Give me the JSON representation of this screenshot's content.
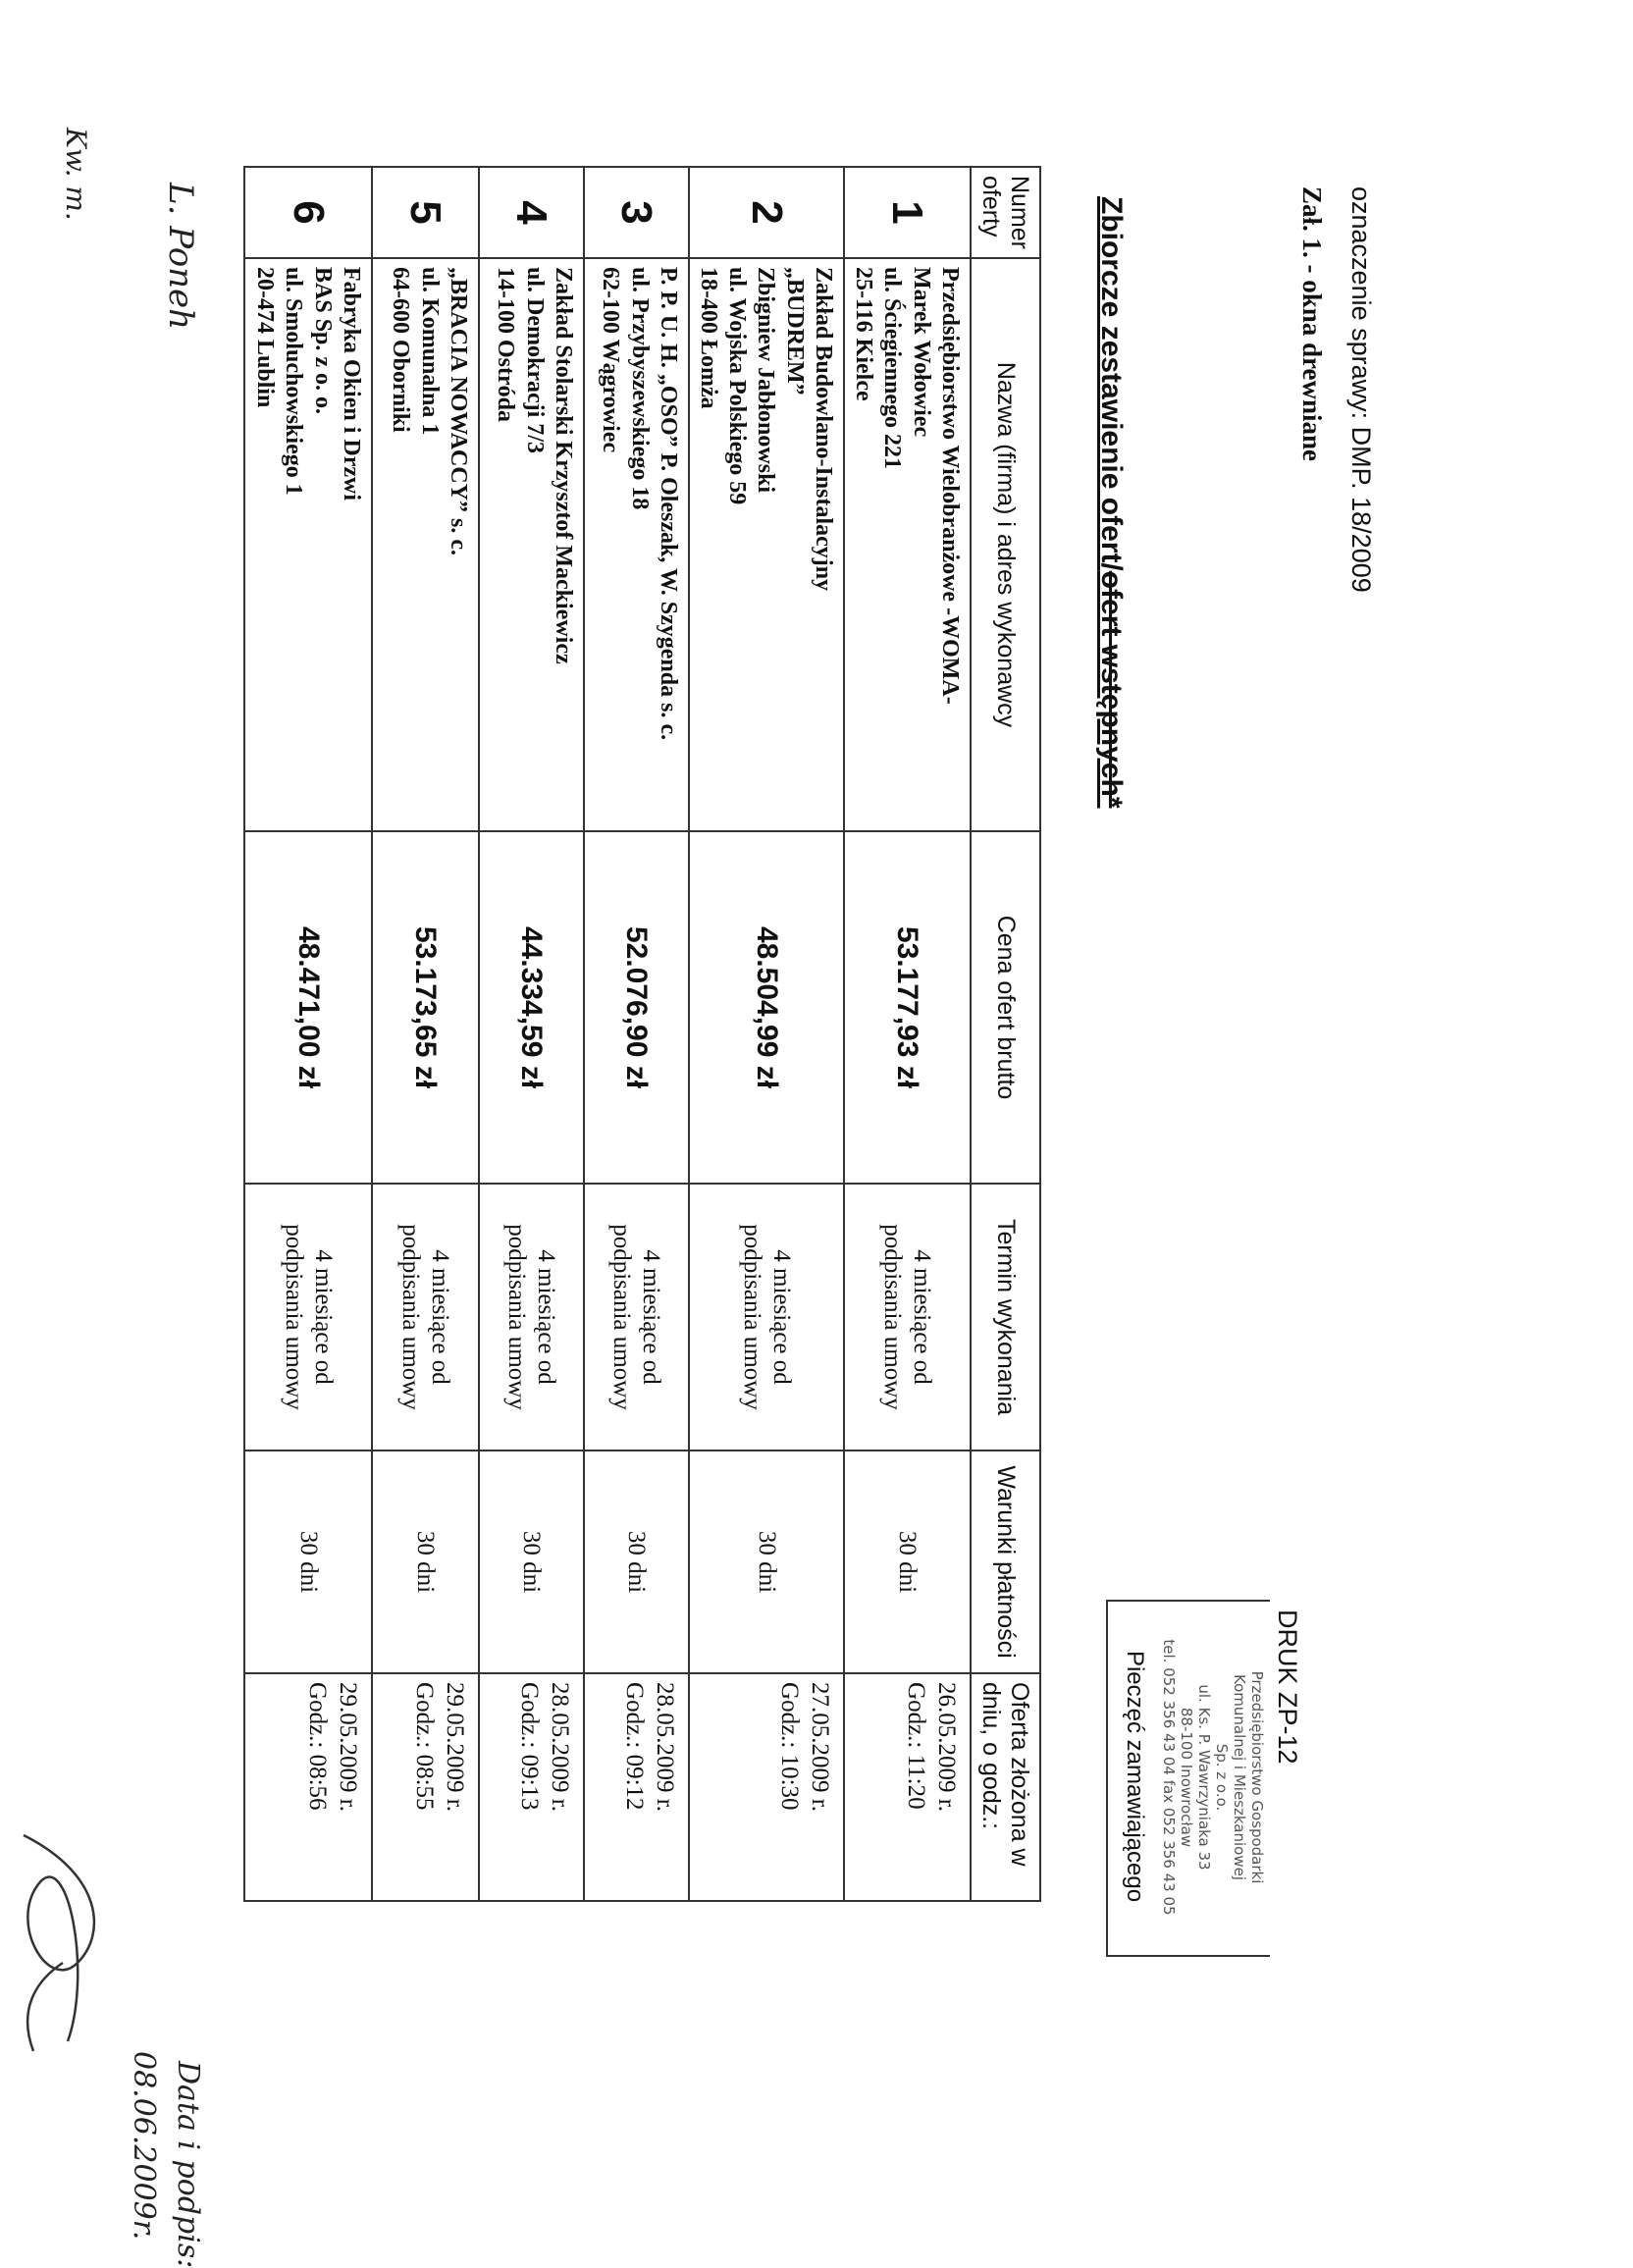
{
  "header": {
    "case": "oznaczenie sprawy: DMP. 18/2009",
    "attachment": "Zał. 1. - okna drewniane",
    "title_main": "Zbiorcze zestawienie ofert/",
    "title_struck": "ofert wstępnych*"
  },
  "table": {
    "columns": [
      "Numer oferty",
      "Nazwa (firma) i adres wykonawcy",
      "Cena ofert brutto",
      "Termin wykonania",
      "Warunki płatności",
      "Oferta złożona w dniu, o godz.:"
    ],
    "rows": [
      {
        "no": "1",
        "name": [
          "Przedsiębiorstwo Wielobranżowe -WOMA-",
          "Marek Wołowiec",
          "ul. Ściegiennego 221",
          "25-116 Kielce"
        ],
        "price": "53.177,93 zł",
        "term": [
          "4 miesiące od",
          "podpisania umowy"
        ],
        "pay": "30 dni",
        "date": "26.05.2009 r.",
        "time": "Godz.: 11:20"
      },
      {
        "no": "2",
        "name": [
          "Zakład Budowlano-Instalacyjny",
          "„BUDREM”",
          "Zbigniew Jabłonowski",
          "ul. Wojska Polskiego 59",
          "18-400 Łomża"
        ],
        "price": "48.504,99 zł",
        "term": [
          "4 miesiące od",
          "podpisania umowy"
        ],
        "pay": "30 dni",
        "date": "27.05.2009 r.",
        "time": "Godz.: 10:30"
      },
      {
        "no": "3",
        "name": [
          "P. P. U. H. „OSO” P. Oleszak, W. Szygenda s. c.",
          "ul. Przybyszewskiego 18",
          "62-100 Wągrowiec"
        ],
        "price": "52.076,90 zł",
        "term": [
          "4 miesiące od",
          "podpisania umowy"
        ],
        "pay": "30 dni",
        "date": "28.05.2009 r.",
        "time": "Godz.: 09:12"
      },
      {
        "no": "4",
        "name": [
          "Zakład Stolarski Krzysztof Mackiewicz",
          "ul. Demokracji 7/3",
          "14-100 Ostróda"
        ],
        "price": "44.334,59 zł",
        "term": [
          "4 miesiące od",
          "podpisania umowy"
        ],
        "pay": "30 dni",
        "date": "28.05.2009 r.",
        "time": "Godz.: 09:13"
      },
      {
        "no": "5",
        "name": [
          "„BRACIA NOWACCY” s. c.",
          "ul. Komunalna 1",
          "64-600 Oborniki"
        ],
        "price": "53.173,65 zł",
        "term": [
          "4 miesiące od",
          "podpisania umowy"
        ],
        "pay": "30 dni",
        "date": "29.05.2009 r.",
        "time": "Godz.: 08:55"
      },
      {
        "no": "6",
        "name": [
          "Fabryka Okien i Drzwi",
          "BAS Sp. z o. o.",
          "ul. Smoluchowskiego 1",
          "20-474 Lublin"
        ],
        "price": "48.471,00 zł",
        "term": [
          "4 miesiące od",
          "podpisania umowy"
        ],
        "pay": "30 dni",
        "date": "29.05.2009 r.",
        "time": "Godz.: 08:56"
      }
    ]
  },
  "stamp": {
    "form": "DRUK ZP-12",
    "lines": [
      "Przedsiębiorstwo Gospodarki",
      "Komunalnej i Mieszkaniowej",
      "Sp. z o.o.",
      "ul. Ks. P. Wawrzyniaka 33",
      "88-100 Inowrocław",
      "tel. 052 356 43 04 fax 052 356 43 05"
    ],
    "caption": "Pieczęć zamawiającego"
  },
  "handwriting": {
    "date_label": "Data i podpis:",
    "date": "08.06.2009r.",
    "initials_1": "L. Poneh",
    "initials_2": "Kw. m."
  }
}
